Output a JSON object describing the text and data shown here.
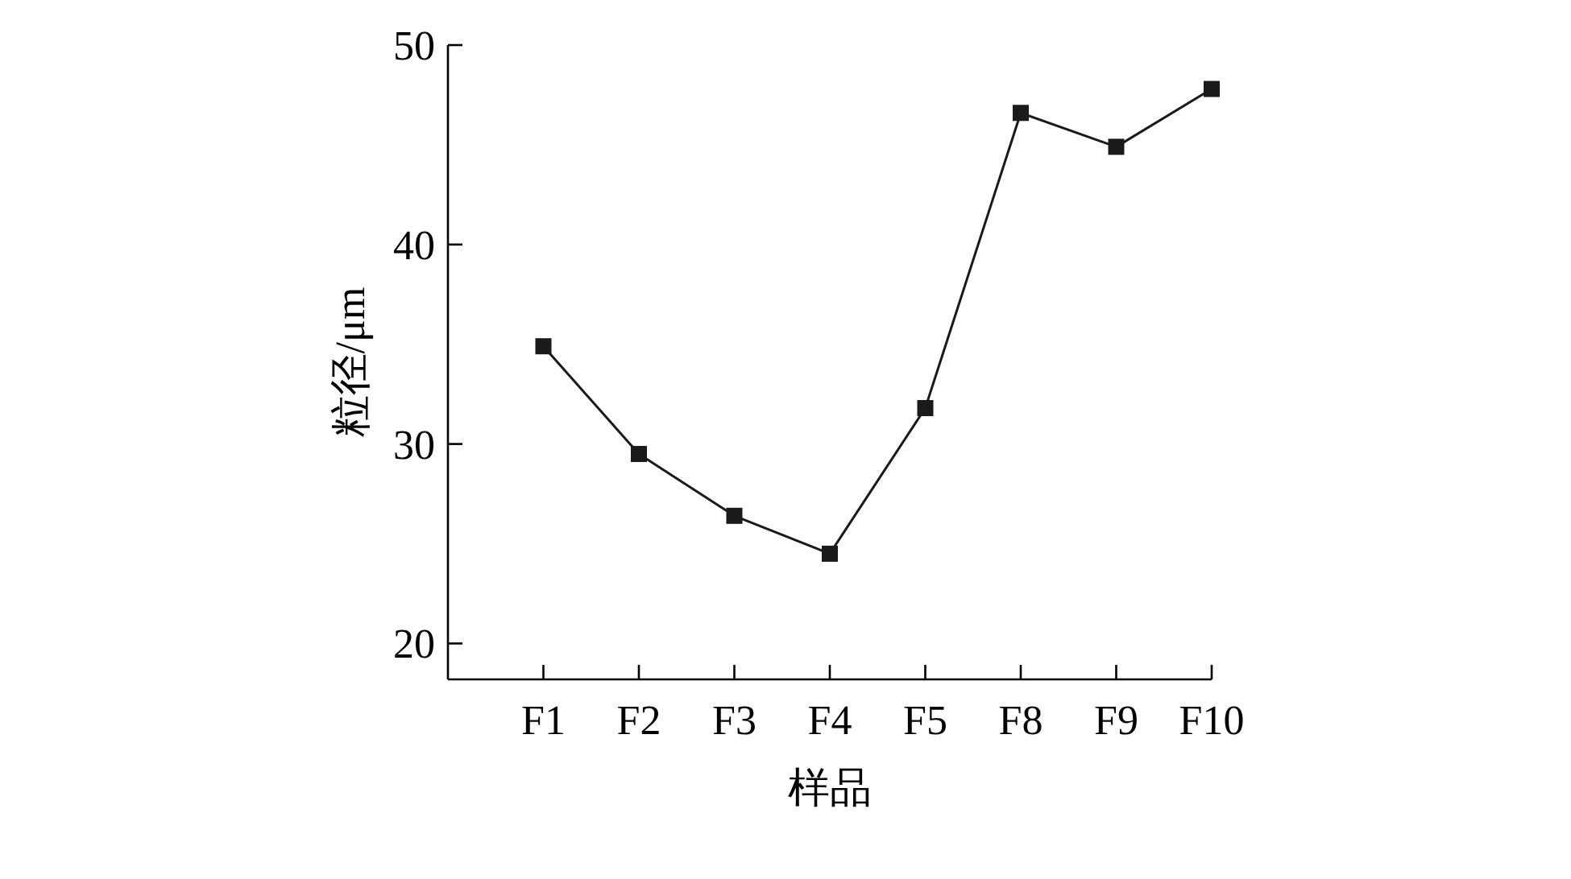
{
  "chart_data": {
    "type": "line",
    "xlabel": "样品",
    "ylabel": "粒径/μm",
    "categories": [
      "F1",
      "F2",
      "F3",
      "F4",
      "F5",
      "F8",
      "F9",
      "F10"
    ],
    "series": [
      {
        "color": "#1a1a1a",
        "values": [
          34.9,
          29.5,
          26.4,
          24.5,
          31.8,
          46.6,
          44.9,
          47.8
        ]
      }
    ],
    "ylim": [
      18.2,
      50
    ],
    "yticks": [
      20,
      30,
      40,
      50
    ],
    "marker": "square",
    "line_style": "solid",
    "grid": false
  }
}
